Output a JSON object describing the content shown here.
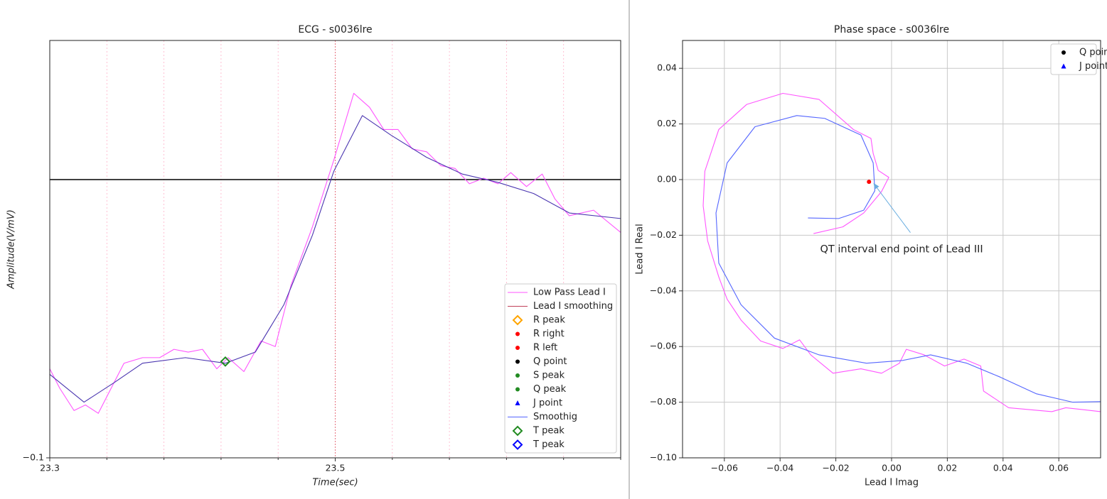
{
  "chart_data": [
    {
      "type": "line",
      "title": "ECG - s0036lre",
      "xlabel": "Time(sec)",
      "ylabel": "Amplitude(V/mV)",
      "xlim": [
        23.3,
        23.7
      ],
      "ylim": [
        -0.1,
        0.05
      ],
      "xticks": [
        23.3,
        23.5
      ],
      "yticks": [
        {
          "value": -0.1,
          "label": "−0.1"
        }
      ],
      "minor_xticks": [
        23.34,
        23.38,
        23.42,
        23.46,
        23.54,
        23.58,
        23.62,
        23.66,
        23.7
      ],
      "grid": "x-dotted",
      "hline": 0,
      "legend_loc": "lower right",
      "series": [
        {
          "color": "#ff55ff",
          "x": [
            23.3,
            23.307,
            23.317,
            23.325,
            23.334,
            23.345,
            23.352,
            23.365,
            23.377,
            23.387,
            23.397,
            23.407,
            23.417,
            23.425,
            23.436,
            23.448,
            23.458,
            23.469,
            23.484,
            23.499,
            23.513,
            23.524,
            23.534,
            23.544,
            23.554,
            23.564,
            23.574,
            23.584,
            23.594,
            23.604,
            23.614,
            23.623,
            23.634,
            23.645,
            23.654,
            23.664,
            23.681,
            23.7
          ],
          "values": [
            -0.068,
            -0.075,
            -0.083,
            -0.081,
            -0.084,
            -0.073,
            -0.066,
            -0.064,
            -0.064,
            -0.061,
            -0.062,
            -0.061,
            -0.068,
            -0.064,
            -0.069,
            -0.058,
            -0.06,
            -0.038,
            -0.017,
            0.007,
            0.031,
            0.026,
            0.018,
            0.018,
            0.011,
            0.01,
            0.005,
            0.004,
            -0.0015,
            0.0005,
            -0.0015,
            0.0025,
            -0.0025,
            0.002,
            -0.007,
            -0.013,
            -0.011,
            -0.019
          ]
        },
        {
          "color": "#4a35b0",
          "x": [
            23.3,
            23.324,
            23.345,
            23.365,
            23.395,
            23.423,
            23.444,
            23.464,
            23.484,
            23.499,
            23.519,
            23.539,
            23.564,
            23.589,
            23.614,
            23.639,
            23.664,
            23.7
          ],
          "values": [
            -0.07,
            -0.08,
            -0.073,
            -0.066,
            -0.064,
            -0.066,
            -0.062,
            -0.045,
            -0.02,
            0.003,
            0.023,
            0.016,
            0.008,
            0.002,
            -0.001,
            -0.005,
            -0.012,
            -0.014
          ]
        }
      ],
      "markers": [
        {
          "x": 23.423,
          "y": -0.0654,
          "color": "#228b22",
          "marker": "diamond"
        }
      ],
      "legend": [
        {
          "name": "Low Pass Lead I",
          "color": "#ff55ff",
          "marker": "line"
        },
        {
          "name": "Lead I smoothing",
          "color": "#c0405a",
          "marker": "line"
        },
        {
          "name": "R peak",
          "color": "#ffa500",
          "marker": "diamond"
        },
        {
          "name": "R right",
          "color": "#ff0000",
          "marker": "dot"
        },
        {
          "name": "R left",
          "color": "#ff0000",
          "marker": "dot"
        },
        {
          "name": "Q point",
          "color": "#000000",
          "marker": "dot"
        },
        {
          "name": "S peak",
          "color": "#228b22",
          "marker": "dot"
        },
        {
          "name": "Q peak",
          "color": "#228b22",
          "marker": "dot"
        },
        {
          "name": "J point",
          "color": "#0000ff",
          "marker": "triangle"
        },
        {
          "name": "Smoothig",
          "color": "#5566ff",
          "marker": "line"
        },
        {
          "name": "T peak",
          "color": "#228b22",
          "marker": "diamond"
        },
        {
          "name": "T peak",
          "color": "#0000ff",
          "marker": "diamond"
        }
      ]
    },
    {
      "type": "phase",
      "title": "Phase space - s0036lre",
      "xlabel": "Lead I Imag",
      "ylabel": "Lead I Real",
      "xlim": [
        -0.075,
        0.075
      ],
      "ylim": [
        -0.1,
        0.05
      ],
      "xticks": [
        {
          "value": -0.06,
          "label": "−0.06"
        },
        {
          "value": -0.04,
          "label": "−0.04"
        },
        {
          "value": -0.02,
          "label": "−0.02"
        },
        {
          "value": 0,
          "label": "0.00"
        },
        {
          "value": 0.02,
          "label": "0.02"
        },
        {
          "value": 0.04,
          "label": "0.04"
        },
        {
          "value": 0.06,
          "label": "0.06"
        }
      ],
      "yticks": [
        {
          "value": -0.1,
          "label": "−0.10"
        },
        {
          "value": -0.08,
          "label": "−0.08"
        },
        {
          "value": -0.06,
          "label": "−0.06"
        },
        {
          "value": -0.04,
          "label": "−0.04"
        },
        {
          "value": -0.02,
          "label": "−0.02"
        },
        {
          "value": 0,
          "label": "0.00"
        },
        {
          "value": 0.02,
          "label": "0.02"
        },
        {
          "value": 0.04,
          "label": "0.04"
        }
      ],
      "grid": "both",
      "legend_loc": "upper right",
      "series": [
        {
          "color": "#ff55ff",
          "x": [
            -0.028,
            -0.0175,
            -0.01,
            -0.0036,
            -0.001,
            -0.0048,
            -0.0066,
            -0.0074,
            -0.0137,
            -0.026,
            -0.039,
            -0.052,
            -0.062,
            -0.067,
            -0.0676,
            -0.066,
            -0.062,
            -0.059,
            -0.054,
            -0.047,
            -0.039,
            -0.033,
            -0.029,
            -0.021,
            -0.011,
            -0.0036,
            0.0028,
            0.0053,
            0.0117,
            0.019,
            0.026,
            0.032,
            0.033,
            0.042,
            0.0575,
            0.0625,
            0.075
          ],
          "values": [
            -0.0194,
            -0.017,
            -0.012,
            -0.0043,
            0.0008,
            0.0033,
            0.0094,
            0.0148,
            0.018,
            0.0288,
            0.031,
            0.027,
            0.018,
            0.003,
            -0.0094,
            -0.022,
            -0.035,
            -0.043,
            -0.0505,
            -0.058,
            -0.0607,
            -0.0576,
            -0.063,
            -0.0696,
            -0.068,
            -0.0696,
            -0.066,
            -0.061,
            -0.063,
            -0.067,
            -0.0645,
            -0.067,
            -0.076,
            -0.082,
            -0.0834,
            -0.082,
            -0.0834
          ]
        },
        {
          "color": "#5566ff",
          "x": [
            -0.03,
            -0.019,
            -0.01,
            -0.006,
            -0.0066,
            -0.011,
            -0.024,
            -0.034,
            -0.049,
            -0.059,
            -0.063,
            -0.062,
            -0.054,
            -0.042,
            -0.026,
            -0.009,
            0.004,
            0.014,
            0.027,
            0.039,
            0.052,
            0.065,
            0.075
          ],
          "values": [
            -0.0138,
            -0.014,
            -0.011,
            -0.004,
            0.006,
            0.016,
            0.022,
            0.023,
            0.019,
            0.006,
            -0.012,
            -0.03,
            -0.045,
            -0.057,
            -0.063,
            -0.066,
            -0.065,
            -0.063,
            -0.066,
            -0.071,
            -0.077,
            -0.08,
            -0.0798
          ]
        }
      ],
      "markers": [
        {
          "x": -0.0081,
          "y": -0.0008,
          "color": "#ff0000",
          "marker": "dot"
        }
      ],
      "annotation": {
        "text": "QT interval end point of Lead III",
        "xy": [
          -0.0065,
          -0.0012
        ]
      },
      "legend": [
        {
          "name": "Q point",
          "color": "#000000",
          "marker": "dot"
        },
        {
          "name": "J point",
          "color": "#0000ff",
          "marker": "triangle"
        }
      ]
    }
  ]
}
